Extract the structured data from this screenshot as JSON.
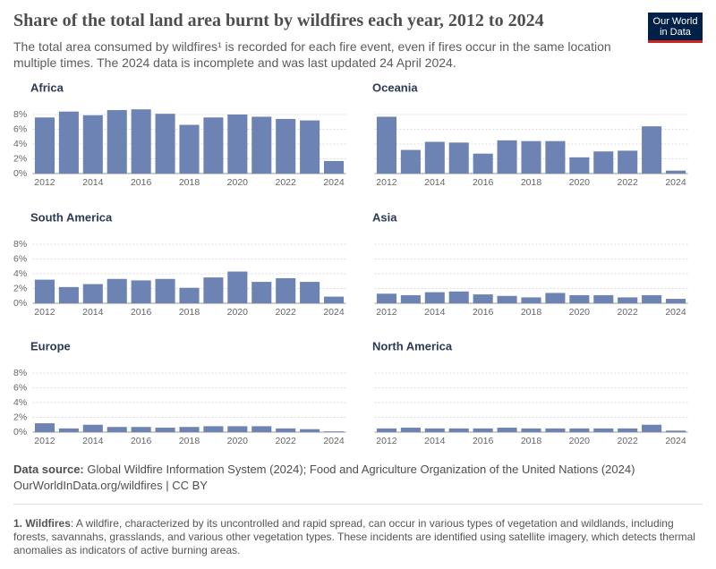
{
  "title": "Share of the total land area burnt by wildfires each year, 2012 to 2024",
  "subtitle": "The total area consumed by wildfires¹ is recorded for each fire event, even if fires occur in the same location multiple times. The 2024 data is incomplete and was last updated 24 April 2024.",
  "logo": {
    "line1": "Our World",
    "line2": "in Data"
  },
  "source": {
    "label": "Data source:",
    "text": "Global Wildfire Information System (2024); Food and Agriculture Organization of the United Nations (2024)",
    "link": "OurWorldInData.org/wildfires | CC BY"
  },
  "footnote": {
    "term": "1. Wildfires",
    "text": ": A wildfire, characterized by its uncontrolled and rapid spread, can occur in various types of vegetation and wildlands, including forests, savannahs, grasslands, and various other vegetation types. These incidents are identified using satellite imagery, which detects thermal anomalies as indicators of active burning areas."
  },
  "chart_data": [
    {
      "type": "bar",
      "title": "Africa",
      "x": [
        2012,
        2013,
        2014,
        2015,
        2016,
        2017,
        2018,
        2019,
        2020,
        2021,
        2022,
        2023,
        2024
      ],
      "values": [
        7.6,
        8.4,
        7.9,
        8.6,
        8.7,
        8.1,
        6.6,
        7.6,
        8.0,
        7.7,
        7.4,
        7.2,
        1.7
      ],
      "color": "#6d83b3",
      "xlim": [
        2011.5,
        2024.5
      ],
      "xticks": [
        2012,
        2014,
        2016,
        2018,
        2020,
        2022,
        2024
      ],
      "ylim": [
        0,
        8
      ],
      "yticks": [
        {
          "value": 0,
          "label": "0%"
        },
        {
          "value": 2,
          "label": "2%"
        },
        {
          "value": 4,
          "label": "4%"
        },
        {
          "value": 6,
          "label": "6%"
        },
        {
          "value": 8,
          "label": "8%"
        }
      ],
      "grid": true
    },
    {
      "type": "bar",
      "title": "Oceania",
      "x": [
        2012,
        2013,
        2014,
        2015,
        2016,
        2017,
        2018,
        2019,
        2020,
        2021,
        2022,
        2023,
        2024
      ],
      "values": [
        7.7,
        3.2,
        4.3,
        4.2,
        2.7,
        4.5,
        4.4,
        4.4,
        2.2,
        3.0,
        3.1,
        6.4,
        0.4
      ],
      "color": "#6d83b3",
      "xlim": [
        2011.5,
        2024.5
      ],
      "xticks": [
        2012,
        2014,
        2016,
        2018,
        2020,
        2022,
        2024
      ],
      "ylim": [
        0,
        8
      ],
      "yticks": [
        0,
        2,
        4,
        6,
        8
      ],
      "ytick_labels": false,
      "grid": true
    },
    {
      "type": "bar",
      "title": "South America",
      "x": [
        2012,
        2013,
        2014,
        2015,
        2016,
        2017,
        2018,
        2019,
        2020,
        2021,
        2022,
        2023,
        2024
      ],
      "values": [
        3.2,
        2.2,
        2.6,
        3.3,
        3.1,
        3.3,
        2.1,
        3.5,
        4.3,
        2.9,
        3.4,
        2.9,
        0.9
      ],
      "color": "#6d83b3",
      "xlim": [
        2011.5,
        2024.5
      ],
      "xticks": [
        2012,
        2014,
        2016,
        2018,
        2020,
        2022,
        2024
      ],
      "ylim": [
        0,
        8
      ],
      "yticks": [
        {
          "value": 0,
          "label": "0%"
        },
        {
          "value": 2,
          "label": "2%"
        },
        {
          "value": 4,
          "label": "4%"
        },
        {
          "value": 6,
          "label": "6%"
        },
        {
          "value": 8,
          "label": "8%"
        }
      ],
      "grid": true
    },
    {
      "type": "bar",
      "title": "Asia",
      "x": [
        2012,
        2013,
        2014,
        2015,
        2016,
        2017,
        2018,
        2019,
        2020,
        2021,
        2022,
        2023,
        2024
      ],
      "values": [
        1.3,
        1.1,
        1.5,
        1.6,
        1.2,
        1.0,
        0.8,
        1.4,
        1.1,
        1.1,
        0.8,
        1.1,
        0.6
      ],
      "color": "#6d83b3",
      "xlim": [
        2011.5,
        2024.5
      ],
      "xticks": [
        2012,
        2014,
        2016,
        2018,
        2020,
        2022,
        2024
      ],
      "ylim": [
        0,
        8
      ],
      "yticks": [
        0,
        2,
        4,
        6,
        8
      ],
      "ytick_labels": false,
      "grid": true
    },
    {
      "type": "bar",
      "title": "Europe",
      "x": [
        2012,
        2013,
        2014,
        2015,
        2016,
        2017,
        2018,
        2019,
        2020,
        2021,
        2022,
        2023,
        2024
      ],
      "values": [
        1.2,
        0.5,
        1.0,
        0.7,
        0.7,
        0.6,
        0.7,
        0.8,
        0.8,
        0.8,
        0.5,
        0.4,
        0.1
      ],
      "color": "#6d83b3",
      "xlim": [
        2011.5,
        2024.5
      ],
      "xticks": [
        2012,
        2014,
        2016,
        2018,
        2020,
        2022,
        2024
      ],
      "ylim": [
        0,
        8
      ],
      "yticks": [
        {
          "value": 0,
          "label": "0%"
        },
        {
          "value": 2,
          "label": "2%"
        },
        {
          "value": 4,
          "label": "4%"
        },
        {
          "value": 6,
          "label": "6%"
        },
        {
          "value": 8,
          "label": "8%"
        }
      ],
      "grid": true
    },
    {
      "type": "bar",
      "title": "North America",
      "x": [
        2012,
        2013,
        2014,
        2015,
        2016,
        2017,
        2018,
        2019,
        2020,
        2021,
        2022,
        2023,
        2024
      ],
      "values": [
        0.5,
        0.6,
        0.5,
        0.5,
        0.5,
        0.6,
        0.5,
        0.5,
        0.5,
        0.5,
        0.5,
        1.0,
        0.2
      ],
      "color": "#6d83b3",
      "xlim": [
        2011.5,
        2024.5
      ],
      "xticks": [
        2012,
        2014,
        2016,
        2018,
        2020,
        2022,
        2024
      ],
      "ylim": [
        0,
        8
      ],
      "yticks": [
        0,
        2,
        4,
        6,
        8
      ],
      "ytick_labels": false,
      "grid": true
    }
  ]
}
